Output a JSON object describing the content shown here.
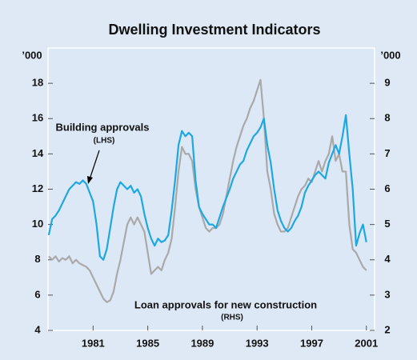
{
  "chart_data": {
    "type": "line",
    "title": "Dwelling Investment Indicators",
    "y_unit": "’000",
    "y2_unit": "’000",
    "annotations": [
      "Building approvals",
      "(LHS)",
      "Loan approvals for new construction",
      "(RHS)"
    ],
    "x": [
      1977.75,
      1978,
      1978.25,
      1978.5,
      1978.75,
      1979,
      1979.25,
      1979.5,
      1979.75,
      1980,
      1980.25,
      1980.5,
      1980.75,
      1981,
      1981.25,
      1981.5,
      1981.75,
      1982,
      1982.25,
      1982.5,
      1982.75,
      1983,
      1983.25,
      1983.5,
      1983.75,
      1984,
      1984.25,
      1984.5,
      1984.75,
      1985,
      1985.25,
      1985.5,
      1985.75,
      1986,
      1986.25,
      1986.5,
      1986.75,
      1987,
      1987.25,
      1987.5,
      1987.75,
      1988,
      1988.25,
      1988.5,
      1988.75,
      1989,
      1989.25,
      1989.5,
      1989.75,
      1990,
      1990.25,
      1990.5,
      1990.75,
      1991,
      1991.25,
      1991.5,
      1991.75,
      1992,
      1992.25,
      1992.5,
      1992.75,
      1993,
      1993.25,
      1993.5,
      1993.75,
      1994,
      1994.25,
      1994.5,
      1994.75,
      1995,
      1995.25,
      1995.5,
      1995.75,
      1996,
      1996.25,
      1996.5,
      1996.75,
      1997,
      1997.25,
      1997.5,
      1997.75,
      1998,
      1998.25,
      1998.5,
      1998.75,
      1999,
      1999.25,
      1999.5,
      1999.75,
      2000,
      2000.25,
      2000.5,
      2000.75,
      2001
    ],
    "series": [
      {
        "name": "Building approvals",
        "color": "#1ea7e1",
        "axis": "y",
        "values": [
          9.4,
          10.3,
          10.5,
          10.8,
          11.2,
          11.6,
          12.0,
          12.2,
          12.4,
          12.3,
          12.5,
          12.3,
          11.8,
          11.3,
          10.0,
          8.2,
          8.0,
          8.6,
          9.8,
          11.0,
          12.0,
          12.4,
          12.2,
          12.0,
          12.2,
          11.8,
          12.0,
          11.6,
          10.6,
          9.8,
          9.2,
          8.8,
          9.2,
          9.0,
          9.1,
          9.4,
          10.8,
          12.5,
          14.5,
          15.3,
          15.0,
          15.2,
          15.0,
          12.5,
          11.0,
          10.6,
          10.3,
          10.0,
          10.0,
          9.8,
          10.4,
          11.0,
          11.5,
          12.0,
          12.6,
          13.0,
          13.4,
          13.6,
          14.2,
          14.6,
          15.0,
          15.2,
          15.5,
          16.0,
          14.5,
          13.5,
          12.0,
          10.8,
          10.2,
          9.8,
          9.6,
          9.8,
          10.2,
          10.5,
          11.0,
          11.8,
          12.2,
          12.5,
          12.8,
          13.0,
          12.8,
          12.6,
          13.5,
          14.0,
          14.5,
          14.0,
          15.0,
          16.2,
          14.0,
          12.0,
          8.8,
          9.5,
          10.0,
          9.0
        ]
      },
      {
        "name": "Loan approvals for new construction",
        "color": "#a9a9a9",
        "axis": "y2",
        "values": [
          4.1,
          4.0,
          4.1,
          3.95,
          4.05,
          4.0,
          4.1,
          3.9,
          4.0,
          3.9,
          3.85,
          3.8,
          3.7,
          3.5,
          3.3,
          3.1,
          2.9,
          2.8,
          2.85,
          3.1,
          3.6,
          4.0,
          4.5,
          5.0,
          5.2,
          5.0,
          5.2,
          5.0,
          4.8,
          4.2,
          3.6,
          3.7,
          3.8,
          3.7,
          4.0,
          4.2,
          4.6,
          5.5,
          6.5,
          7.2,
          7.0,
          7.0,
          6.8,
          6.0,
          5.5,
          5.2,
          4.9,
          4.8,
          4.9,
          4.9,
          5.0,
          5.3,
          5.8,
          6.3,
          6.8,
          7.2,
          7.5,
          7.8,
          8.0,
          8.3,
          8.5,
          8.8,
          9.1,
          8.0,
          6.5,
          6.0,
          5.3,
          5.0,
          4.8,
          4.8,
          4.9,
          5.2,
          5.5,
          5.8,
          6.0,
          6.1,
          6.3,
          6.2,
          6.5,
          6.8,
          6.5,
          6.8,
          7.0,
          7.5,
          6.8,
          7.0,
          6.5,
          6.5,
          5.0,
          4.3,
          4.2,
          4.0,
          3.8,
          3.7
        ]
      }
    ],
    "xlim": [
      1977.7,
      2001.6
    ],
    "xticks": [
      1981,
      1985,
      1989,
      1993,
      1997,
      2001
    ],
    "ylim": [
      4,
      20
    ],
    "yticks": [
      4,
      6,
      8,
      10,
      12,
      14,
      16,
      18
    ],
    "y2lim": [
      2,
      10
    ],
    "y2ticks": [
      2,
      3,
      4,
      5,
      6,
      7,
      8,
      9
    ],
    "grid": false
  }
}
